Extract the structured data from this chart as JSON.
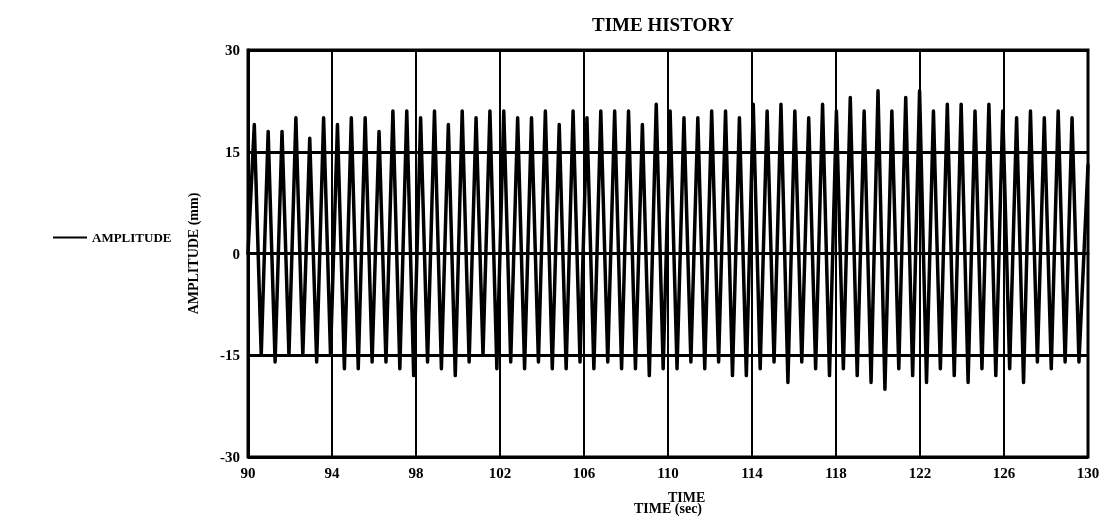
{
  "chart_data": {
    "type": "line",
    "title": "TIME HISTORY",
    "xlabel": "TIME (sec)",
    "ylabel": "AMPLITUDE (mm)",
    "annotations": [
      "TIME"
    ],
    "xlim": [
      90,
      130
    ],
    "xticks": [
      90,
      94,
      98,
      102,
      106,
      110,
      114,
      118,
      122,
      126,
      130
    ],
    "ylim": [
      -30,
      30
    ],
    "yticks": [
      -30,
      -15,
      0,
      15,
      30
    ],
    "grid": true,
    "legend": "left",
    "marker": "none",
    "line_style": "solid",
    "series": [
      {
        "name": "AMPLITUDE",
        "color": "#000000",
        "x": [
          90,
          90.3,
          90.63,
          90.96,
          91.29,
          91.62,
          91.95,
          92.28,
          92.61,
          92.94,
          93.27,
          93.6,
          93.93,
          94.26,
          94.59,
          94.92,
          95.25,
          95.58,
          95.91,
          96.24,
          96.57,
          96.9,
          97.23,
          97.56,
          97.89,
          98.22,
          98.55,
          98.88,
          99.21,
          99.54,
          99.87,
          100.2,
          100.53,
          100.86,
          101.19,
          101.52,
          101.85,
          102.18,
          102.51,
          102.84,
          103.17,
          103.5,
          103.83,
          104.16,
          104.49,
          104.82,
          105.15,
          105.48,
          105.81,
          106.14,
          106.47,
          106.8,
          107.13,
          107.46,
          107.79,
          108.12,
          108.45,
          108.78,
          109.11,
          109.44,
          109.77,
          110.1,
          110.43,
          110.76,
          111.09,
          111.42,
          111.75,
          112.08,
          112.41,
          112.74,
          113.07,
          113.4,
          113.73,
          114.06,
          114.39,
          114.72,
          115.05,
          115.38,
          115.71,
          116.04,
          116.37,
          116.7,
          117.03,
          117.36,
          117.69,
          118.02,
          118.35,
          118.68,
          119.01,
          119.34,
          119.67,
          120,
          120.33,
          120.66,
          120.99,
          121.32,
          121.65,
          121.98,
          122.31,
          122.64,
          122.97,
          123.3,
          123.63,
          123.96,
          124.29,
          124.62,
          124.95,
          125.28,
          125.61,
          125.94,
          126.27,
          126.6,
          126.93,
          127.26,
          127.59,
          127.92,
          128.25,
          128.58,
          128.91,
          129.24,
          129.57,
          130
        ],
        "values": [
          0,
          19,
          -15,
          18,
          -16,
          18,
          -15,
          20,
          -15,
          17,
          -16,
          20,
          -15,
          19,
          -17,
          20,
          -17,
          20,
          -16,
          18,
          -16,
          21,
          -17,
          21,
          -18,
          20,
          -16,
          21,
          -17,
          19,
          -18,
          21,
          -16,
          20,
          -15,
          21,
          -17,
          21,
          -16,
          20,
          -17,
          20,
          -16,
          21,
          -17,
          19,
          -17,
          21,
          -16,
          20,
          -17,
          21,
          -16,
          21,
          -17,
          21,
          -17,
          19,
          -18,
          22,
          -17,
          21,
          -17,
          20,
          -16,
          20,
          -17,
          21,
          -16,
          21,
          -18,
          20,
          -18,
          22,
          -17,
          21,
          -16,
          22,
          -19,
          21,
          -16,
          20,
          -17,
          22,
          -18,
          21,
          -17,
          23,
          -18,
          21,
          -19,
          24,
          -20,
          21,
          -17,
          23,
          -18,
          24,
          -19,
          21,
          -17,
          22,
          -18,
          22,
          -19,
          21,
          -17,
          22,
          -18,
          21,
          -17,
          20,
          -19,
          21,
          -16,
          20,
          -17,
          21,
          -16,
          20,
          -16,
          13
        ]
      }
    ]
  }
}
